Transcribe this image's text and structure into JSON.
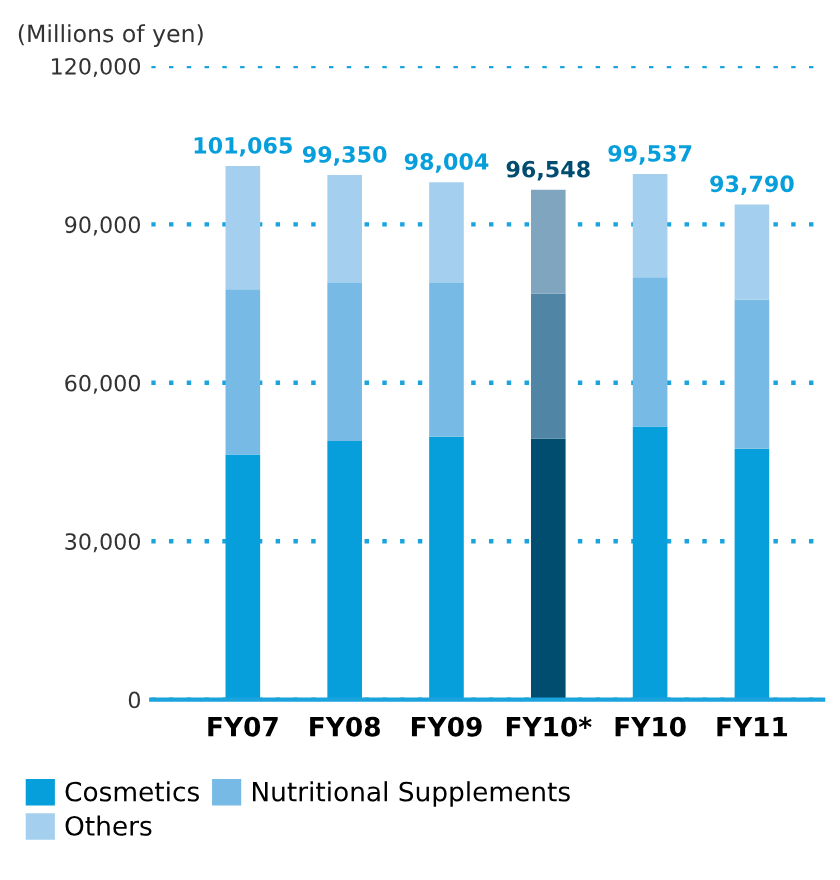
{
  "chart_data": {
    "type": "bar",
    "stacked": true,
    "ylabel": "(Millions of yen)",
    "categories": [
      "FY07",
      "FY08",
      "FY09",
      "FY10*",
      "FY10",
      "FY11"
    ],
    "series": [
      {
        "name": "Cosmetics",
        "color": "#069fdb",
        "colors": [
          "#069fdb",
          "#069fdb",
          "#069fdb",
          "#004d70",
          "#069fdb",
          "#069fdb"
        ],
        "values": [
          46400,
          49000,
          49800,
          49400,
          51700,
          47500
        ]
      },
      {
        "name": "Nutritional Supplements",
        "color": "#77bae5",
        "colors": [
          "#77bae5",
          "#77bae5",
          "#77bae5",
          "#5085a5",
          "#77bae5",
          "#77bae5"
        ],
        "values": [
          31300,
          29900,
          29100,
          27500,
          28300,
          28300
        ]
      },
      {
        "name": "Others",
        "color": "#a5cfee",
        "colors": [
          "#a5cfee",
          "#a5cfee",
          "#a5cfee",
          "#80a6bf",
          "#a5cfee",
          "#a5cfee"
        ],
        "values": [
          23365,
          20450,
          19104,
          19648,
          19537,
          17990
        ]
      }
    ],
    "totals": [
      "101,065",
      "99,350",
      "98,004",
      "96,548",
      "99,537",
      "93,790"
    ],
    "ylim": [
      0,
      120000
    ],
    "yticks": [
      0,
      {
        "value": 30000,
        "label": "30,000"
      },
      {
        "value": 60000,
        "label": "60,000"
      },
      {
        "value": 90000,
        "label": "90,000"
      },
      {
        "value": 120000,
        "label": "120,000"
      }
    ],
    "grid": "y",
    "legend": "bottom"
  }
}
